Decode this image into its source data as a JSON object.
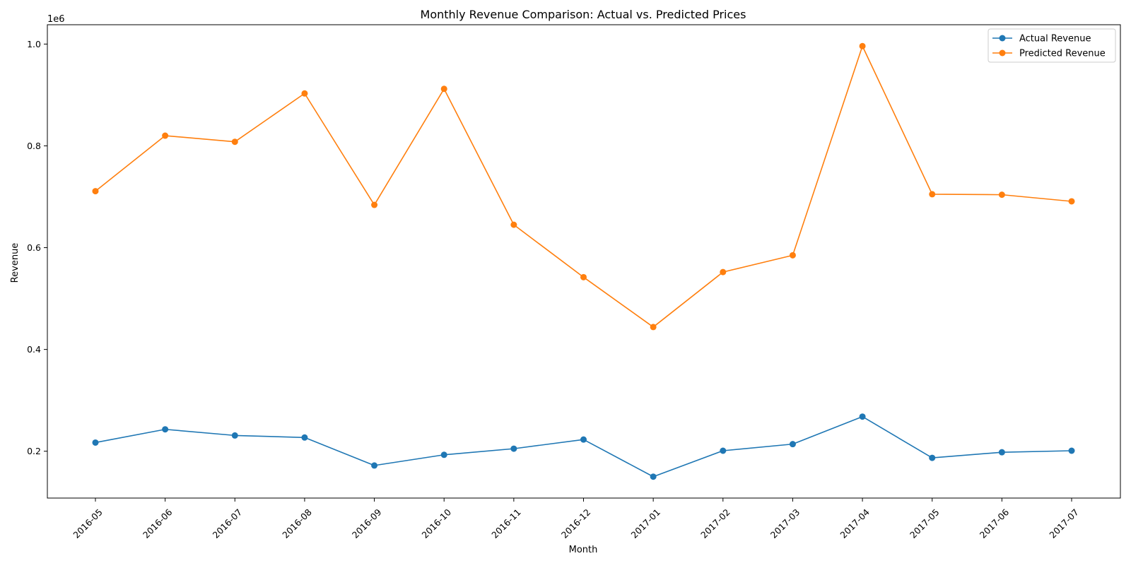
{
  "chart_data": {
    "type": "line",
    "title": "Monthly Revenue Comparison: Actual vs. Predicted Prices",
    "xlabel": "Month",
    "ylabel": "Revenue",
    "y_offset_label": "1e6",
    "categories": [
      "2016-05",
      "2016-06",
      "2016-07",
      "2016-08",
      "2016-09",
      "2016-10",
      "2016-11",
      "2016-12",
      "2017-01",
      "2017-02",
      "2017-03",
      "2017-04",
      "2017-05",
      "2017-06",
      "2017-07"
    ],
    "ylim": [
      0.108,
      1.038
    ],
    "yticks": [
      0.2,
      0.4,
      0.6,
      0.8,
      1.0
    ],
    "ytick_labels": [
      "0.2",
      "0.4",
      "0.6",
      "0.8",
      "1.0"
    ],
    "grid": false,
    "legend_position": "top-right",
    "series": [
      {
        "name": "Actual Revenue",
        "color": "#1f77b4",
        "values": [
          0.217,
          0.243,
          0.231,
          0.227,
          0.172,
          0.193,
          0.205,
          0.223,
          0.15,
          0.201,
          0.214,
          0.268,
          0.187,
          0.198,
          0.201
        ]
      },
      {
        "name": "Predicted Revenue",
        "color": "#ff7f0e",
        "values": [
          0.711,
          0.82,
          0.808,
          0.903,
          0.684,
          0.912,
          0.645,
          0.542,
          0.444,
          0.552,
          0.585,
          0.996,
          0.705,
          0.704,
          0.691
        ]
      }
    ]
  }
}
